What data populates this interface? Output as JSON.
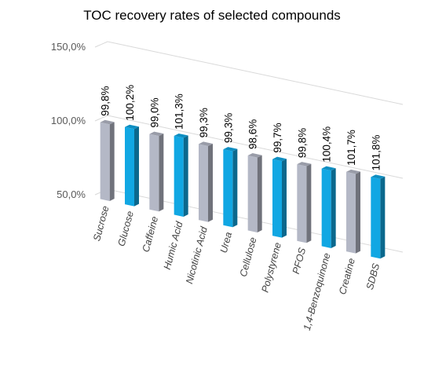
{
  "chart_data": {
    "type": "bar",
    "title": "TOC recovery rates of selected compounds",
    "xlabel": "",
    "ylabel": "",
    "categories": [
      "Sucrose",
      "Glucose",
      "Caffeine",
      "Humic Acid",
      "Nicotinic Acid",
      "Urea",
      "Cellulose",
      "Polystyrene",
      "PFOS",
      "1,4-Benzoquinone",
      "Creatine",
      "SDBS"
    ],
    "series": [
      {
        "values": [
          99.8,
          100.2,
          99.0,
          101.3,
          99.3,
          99.3,
          98.6,
          99.7,
          99.8,
          100.4,
          101.7,
          101.8
        ]
      }
    ],
    "data_labels": [
      "99,8%",
      "100,2%",
      "99,0%",
      "101,3%",
      "99,3%",
      "99,3%",
      "98,6%",
      "99,7%",
      "99,8%",
      "100,4%",
      "101,7%",
      "101,8%"
    ],
    "y_ticks": [
      "50,0%",
      "100,0%",
      "150,0%"
    ],
    "ylim": [
      50,
      150
    ],
    "grid": true,
    "legend": "none",
    "colors": {
      "gray_bar": "#b4b8c6",
      "blue_bar": "#11a7e3",
      "gridline": "#d9d9d9"
    }
  }
}
